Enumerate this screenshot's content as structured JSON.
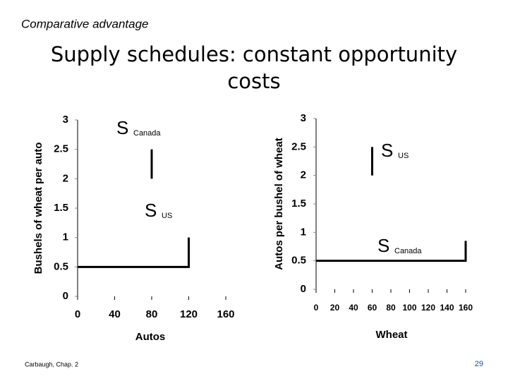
{
  "header": {
    "kicker": "Comparative advantage",
    "title": "Supply schedules: constant opportunity costs"
  },
  "chart_data": [
    {
      "type": "line",
      "ylabel": "Bushels of wheat per auto",
      "xlabel": "Autos",
      "xlim": [
        0,
        160
      ],
      "xticks": [
        0,
        40,
        80,
        120,
        160
      ],
      "ylim": [
        0,
        3
      ],
      "yticks": [
        0,
        0.5,
        1,
        1.5,
        2,
        2.5,
        3
      ],
      "series": [
        {
          "name": "S",
          "subscript": "Canada",
          "color": "#000000",
          "x": [
            80,
            80
          ],
          "values": [
            2,
            2.5
          ]
        },
        {
          "name": "S",
          "subscript": "US",
          "color": "#000000",
          "x": [
            0,
            120,
            120
          ],
          "values": [
            0.5,
            0.5,
            1
          ]
        }
      ]
    },
    {
      "type": "line",
      "ylabel": "Autos per bushel of wheat",
      "xlabel": "Wheat",
      "xlim": [
        0,
        160
      ],
      "xticks": [
        0,
        20,
        40,
        60,
        80,
        100,
        120,
        140,
        160
      ],
      "ylim": [
        0,
        3
      ],
      "yticks": [
        0,
        0.5,
        1,
        1.5,
        2,
        2.5,
        3
      ],
      "series": [
        {
          "name": "S",
          "subscript": "US",
          "color": "#000000",
          "x": [
            60,
            60
          ],
          "values": [
            2,
            2.5
          ]
        },
        {
          "name": "S",
          "subscript": "Canada",
          "color": "#000000",
          "x": [
            0,
            160,
            160
          ],
          "values": [
            0.5,
            0.5,
            0.85
          ]
        }
      ]
    }
  ],
  "footer": {
    "source": "Carbaugh, Chap. 2",
    "page": "29"
  }
}
